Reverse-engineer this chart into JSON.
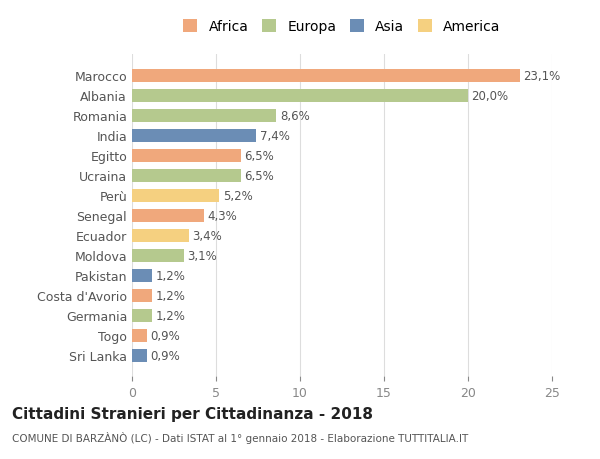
{
  "countries": [
    "Marocco",
    "Albania",
    "Romania",
    "India",
    "Egitto",
    "Ucraina",
    "Perù",
    "Senegal",
    "Ecuador",
    "Moldova",
    "Pakistan",
    "Costa d'Avorio",
    "Germania",
    "Togo",
    "Sri Lanka"
  ],
  "values": [
    23.1,
    20.0,
    8.6,
    7.4,
    6.5,
    6.5,
    5.2,
    4.3,
    3.4,
    3.1,
    1.2,
    1.2,
    1.2,
    0.9,
    0.9
  ],
  "labels": [
    "23,1%",
    "20,0%",
    "8,6%",
    "7,4%",
    "6,5%",
    "6,5%",
    "5,2%",
    "4,3%",
    "3,4%",
    "3,1%",
    "1,2%",
    "1,2%",
    "1,2%",
    "0,9%",
    "0,9%"
  ],
  "continents": [
    "Africa",
    "Europa",
    "Europa",
    "Asia",
    "Africa",
    "Europa",
    "America",
    "Africa",
    "America",
    "Europa",
    "Asia",
    "Africa",
    "Europa",
    "Africa",
    "Asia"
  ],
  "colors": {
    "Africa": "#F0A87C",
    "Europa": "#B5C98E",
    "Asia": "#6B8DB5",
    "America": "#F5D080"
  },
  "legend_order": [
    "Africa",
    "Europa",
    "Asia",
    "America"
  ],
  "title": "Cittadini Stranieri per Cittadinanza - 2018",
  "subtitle": "COMUNE DI BARZÀNÒ (LC) - Dati ISTAT al 1° gennaio 2018 - Elaborazione TUTTITALIA.IT",
  "xlim": [
    0,
    25
  ],
  "xticks": [
    0,
    5,
    10,
    15,
    20,
    25
  ],
  "background_color": "#ffffff",
  "grid_color": "#dddddd",
  "bar_height": 0.65
}
